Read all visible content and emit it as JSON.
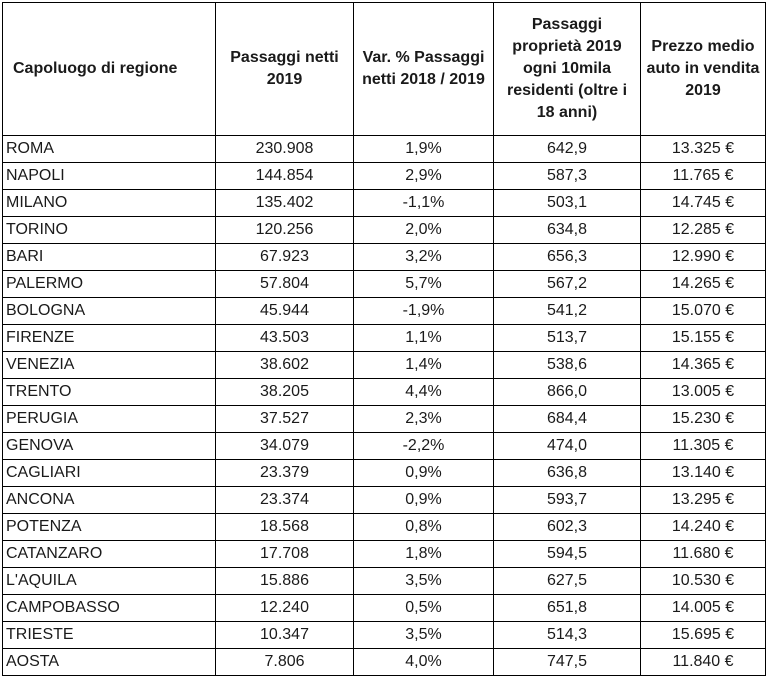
{
  "table": {
    "headers": [
      "Capoluogo di regione",
      "Passaggi netti 2019",
      "Var. % Passaggi netti 2018 / 2019",
      "Passaggi proprietà 2019 ogni 10mila residenti (oltre i 18 anni)",
      "Prezzo medio auto in vendita 2019"
    ],
    "rows": [
      [
        "ROMA",
        "230.908",
        "1,9%",
        "642,9",
        "13.325 €"
      ],
      [
        "NAPOLI",
        "144.854",
        "2,9%",
        "587,3",
        "11.765 €"
      ],
      [
        "MILANO",
        "135.402",
        "-1,1%",
        "503,1",
        "14.745 €"
      ],
      [
        "TORINO",
        "120.256",
        "2,0%",
        "634,8",
        "12.285 €"
      ],
      [
        "BARI",
        "67.923",
        "3,2%",
        "656,3",
        "12.990 €"
      ],
      [
        "PALERMO",
        "57.804",
        "5,7%",
        "567,2",
        "14.265 €"
      ],
      [
        "BOLOGNA",
        "45.944",
        "-1,9%",
        "541,2",
        "15.070 €"
      ],
      [
        "FIRENZE",
        "43.503",
        "1,1%",
        "513,7",
        "15.155 €"
      ],
      [
        "VENEZIA",
        "38.602",
        "1,4%",
        "538,6",
        "14.365 €"
      ],
      [
        "TRENTO",
        "38.205",
        "4,4%",
        "866,0",
        "13.005 €"
      ],
      [
        "PERUGIA",
        "37.527",
        "2,3%",
        "684,4",
        "15.230 €"
      ],
      [
        "GENOVA",
        "34.079",
        "-2,2%",
        "474,0",
        "11.305 €"
      ],
      [
        "CAGLIARI",
        "23.379",
        "0,9%",
        "636,8",
        "13.140 €"
      ],
      [
        "ANCONA",
        "23.374",
        "0,9%",
        "593,7",
        "13.295 €"
      ],
      [
        "POTENZA",
        "18.568",
        "0,8%",
        "602,3",
        "14.240 €"
      ],
      [
        "CATANZARO",
        "17.708",
        "1,8%",
        "594,5",
        "11.680 €"
      ],
      [
        "L'AQUILA",
        "15.886",
        "3,5%",
        "627,5",
        "10.530 €"
      ],
      [
        "CAMPOBASSO",
        "12.240",
        "0,5%",
        "651,8",
        "14.005 €"
      ],
      [
        "TRIESTE",
        "10.347",
        "3,5%",
        "514,3",
        "15.695 €"
      ],
      [
        "AOSTA",
        "7.806",
        "4,0%",
        "747,5",
        "11.840 €"
      ]
    ]
  }
}
